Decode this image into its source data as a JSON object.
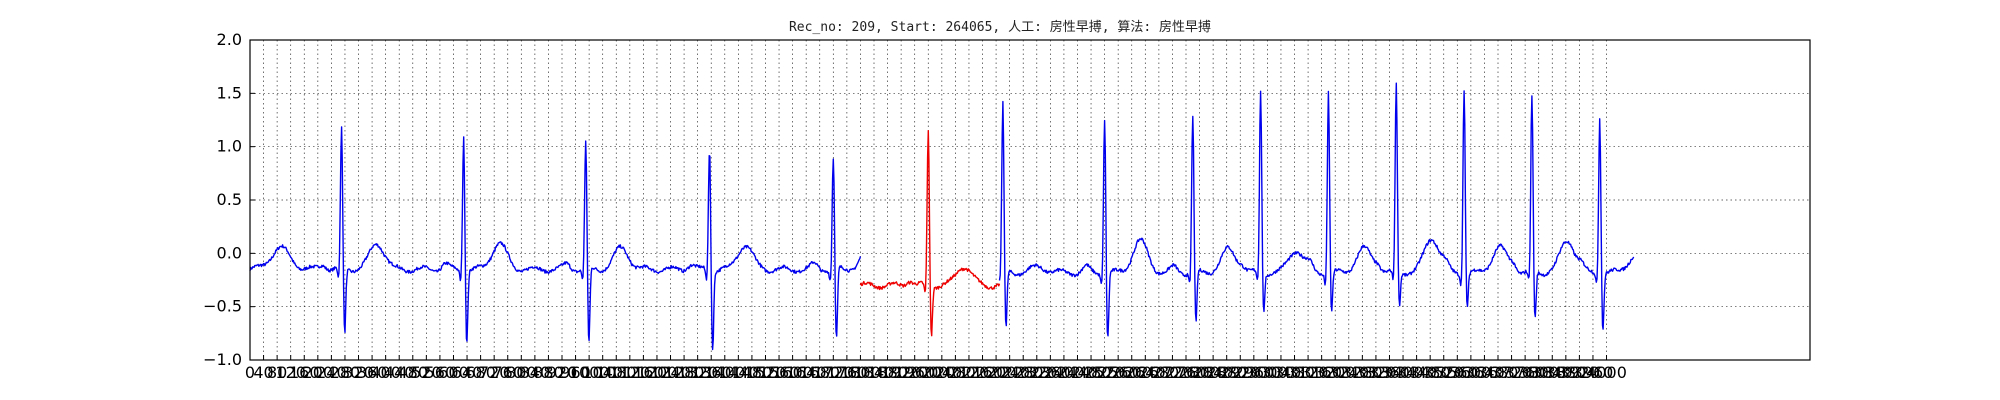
{
  "chart_data": {
    "type": "line",
    "title": "Rec_no: 209, Start: 264065, 人工: 房性早搏, 算法: 房性早搏",
    "xlabel": "",
    "ylabel": "",
    "ylim": [
      -1.0,
      2.0
    ],
    "xlim": [
      0,
      4600
    ],
    "yticks": [
      -1.0,
      -0.5,
      0.0,
      0.5,
      1.0,
      1.5,
      2.0
    ],
    "ytick_labels": [
      "−1.0",
      "−0.5",
      "0.0",
      "0.5",
      "1.0",
      "1.5",
      "2.0"
    ],
    "xticks": [
      0,
      40,
      80,
      120,
      160,
      200,
      240,
      280,
      320,
      360,
      400,
      440,
      480,
      520,
      560,
      600,
      640,
      680,
      720,
      760,
      800,
      840,
      880,
      920,
      960,
      1000,
      1040,
      1080,
      1120,
      1160,
      1200,
      1240,
      1280,
      1320,
      1360,
      1400,
      1440,
      1480,
      1520,
      1560,
      1600,
      1640,
      1680,
      1720,
      1760,
      1800,
      1840,
      1880,
      1920,
      1960,
      2000,
      2040,
      2080,
      2120,
      2160,
      2200,
      2240,
      2280,
      2320,
      2360,
      2400,
      2440,
      2480,
      2520,
      2560,
      2600,
      2640,
      2680,
      2720,
      2760,
      2800,
      2840,
      2880,
      2920,
      2960,
      3000,
      3040,
      3080,
      3120,
      3160,
      3200,
      3240,
      3280,
      3320,
      3360,
      3400,
      3440,
      3480,
      3520,
      3560,
      3600,
      3640,
      3680,
      3720,
      3760,
      3800,
      3840,
      3880,
      3920,
      3960,
      4000
    ],
    "grid": true,
    "series": [
      {
        "role": "ecg-before",
        "color": "#0000ee",
        "x_start": 0,
        "x_end": 1800,
        "beats": [
          {
            "r": 270,
            "r_amp": 1.17,
            "s_amp": -0.78,
            "t_amp": 0.12,
            "p_amp": 0.05
          },
          {
            "r": 630,
            "r_amp": 1.12,
            "s_amp": -0.85,
            "t_amp": 0.12,
            "p_amp": 0.05
          },
          {
            "r": 990,
            "r_amp": 1.06,
            "s_amp": -0.88,
            "t_amp": 0.07,
            "p_amp": 0.05
          },
          {
            "r": 1355,
            "r_amp": 1.0,
            "s_amp": -0.9,
            "t_amp": 0.1,
            "p_amp": 0.05
          },
          {
            "r": 1720,
            "r_amp": 0.9,
            "s_amp": -0.84,
            "t_amp": 0.08,
            "p_amp": 0.05
          }
        ],
        "baseline": -0.15,
        "initial_bump": {
          "x": 90,
          "amp": 0.2
        }
      },
      {
        "role": "ecg-highlight",
        "color": "#ee0000",
        "x_start": 1800,
        "x_end": 2210,
        "beats": [
          {
            "r": 2000,
            "r_amp": 1.17,
            "s_amp": -0.78,
            "t_amp": -0.1,
            "p_amp": 0.05
          }
        ],
        "baseline": -0.3
      },
      {
        "role": "ecg-after",
        "color": "#0000ee",
        "x_start": 2210,
        "x_end": 4080,
        "beats": [
          {
            "r": 2220,
            "r_amp": 1.4,
            "s_amp": -0.74,
            "t_amp": -0.12,
            "p_amp": 0.03
          },
          {
            "r": 2520,
            "r_amp": 1.28,
            "s_amp": -0.82,
            "t_amp": 0.15,
            "p_amp": 0.05
          },
          {
            "r": 2780,
            "r_amp": 1.3,
            "s_amp": -0.68,
            "t_amp": 0.06,
            "p_amp": 0.05
          },
          {
            "r": 2980,
            "r_amp": 1.52,
            "s_amp": -0.55,
            "t_amp": 0.05,
            "p_amp": 0.05
          },
          {
            "r": 3180,
            "r_amp": 1.53,
            "s_amp": -0.57,
            "t_amp": 0.07,
            "p_amp": 0.06
          },
          {
            "r": 3380,
            "r_amp": 1.6,
            "s_amp": -0.52,
            "t_amp": 0.18,
            "p_amp": 0.06
          },
          {
            "r": 3580,
            "r_amp": 1.55,
            "s_amp": -0.52,
            "t_amp": 0.08,
            "p_amp": 0.06
          },
          {
            "r": 3780,
            "r_amp": 1.47,
            "s_amp": -0.65,
            "t_amp": 0.15,
            "p_amp": 0.06
          },
          {
            "r": 3980,
            "r_amp": 1.3,
            "s_amp": -0.73,
            "t_amp": 0.0,
            "p_amp": 0.05
          }
        ],
        "baseline": -0.18
      }
    ]
  }
}
